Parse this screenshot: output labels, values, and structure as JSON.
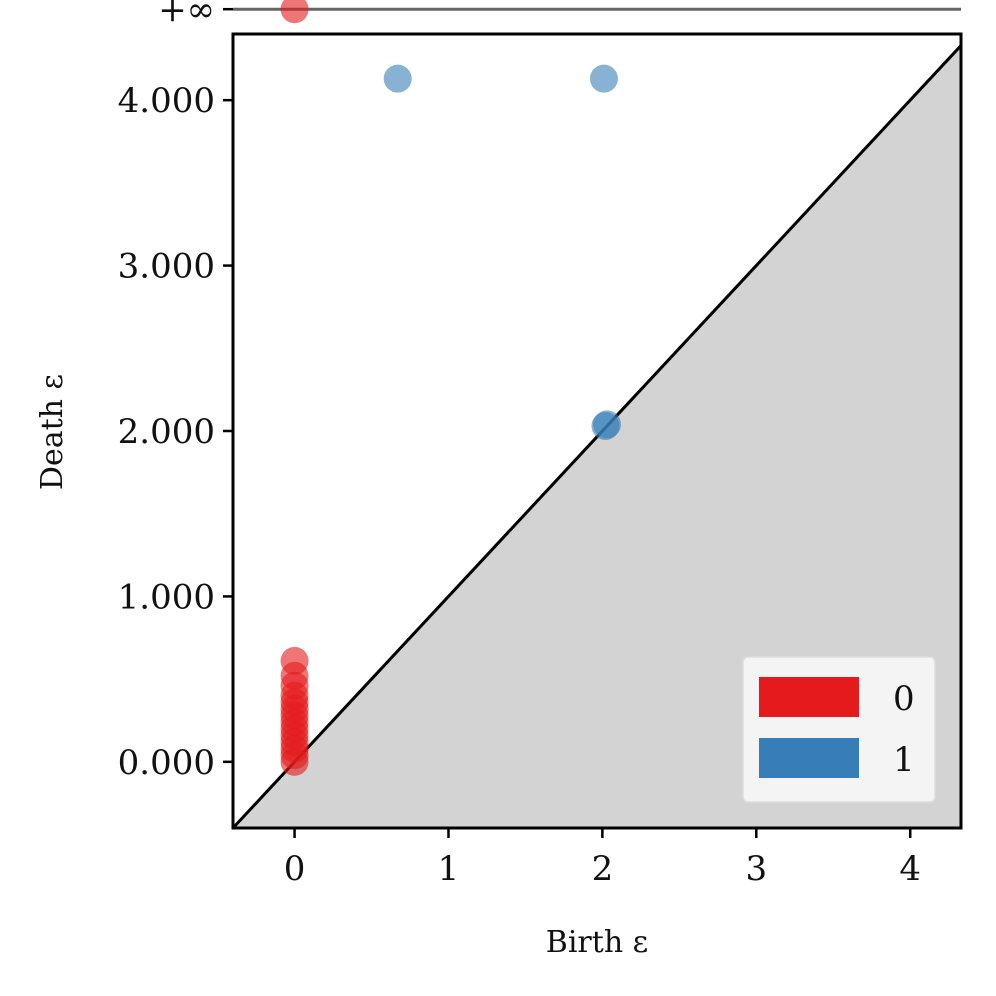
{
  "chart_data": {
    "type": "scatter",
    "title": "",
    "xlabel": "Birth ε",
    "ylabel": "Death ε",
    "xlim": [
      -0.4,
      4.33
    ],
    "ylim": [
      -0.4,
      4.4
    ],
    "x_ticks": [
      0,
      1,
      2,
      3,
      4
    ],
    "x_tick_labels": [
      "0",
      "1",
      "2",
      "3",
      "4"
    ],
    "y_ticks": [
      0,
      1,
      2,
      3,
      4
    ],
    "y_tick_labels": [
      "0.000",
      "1.000",
      "2.000",
      "3.000",
      "4.000"
    ],
    "infinity_label": "+∞",
    "infinity_value": 4.55,
    "diagonal": true,
    "shaded_below_diagonal": true,
    "grid": false,
    "legend_position": "lower-right",
    "series": [
      {
        "name": "0",
        "color": "#e41a1c",
        "points": [
          {
            "x": 0,
            "y": 4.55
          },
          {
            "x": 0,
            "y": 0.61
          },
          {
            "x": 0,
            "y": 0.52
          },
          {
            "x": 0,
            "y": 0.46
          },
          {
            "x": 0,
            "y": 0.4
          },
          {
            "x": 0,
            "y": 0.36
          },
          {
            "x": 0,
            "y": 0.32
          },
          {
            "x": 0,
            "y": 0.28
          },
          {
            "x": 0,
            "y": 0.24
          },
          {
            "x": 0,
            "y": 0.2
          },
          {
            "x": 0,
            "y": 0.16
          },
          {
            "x": 0,
            "y": 0.12
          },
          {
            "x": 0,
            "y": 0.08
          },
          {
            "x": 0,
            "y": 0.04
          },
          {
            "x": 0,
            "y": 0.0
          }
        ]
      },
      {
        "name": "1",
        "color": "#377eb8",
        "points": [
          {
            "x": 0.67,
            "y": 4.13
          },
          {
            "x": 2.01,
            "y": 4.13
          },
          {
            "x": 2.02,
            "y": 2.03
          },
          {
            "x": 2.03,
            "y": 2.04
          }
        ]
      }
    ]
  }
}
